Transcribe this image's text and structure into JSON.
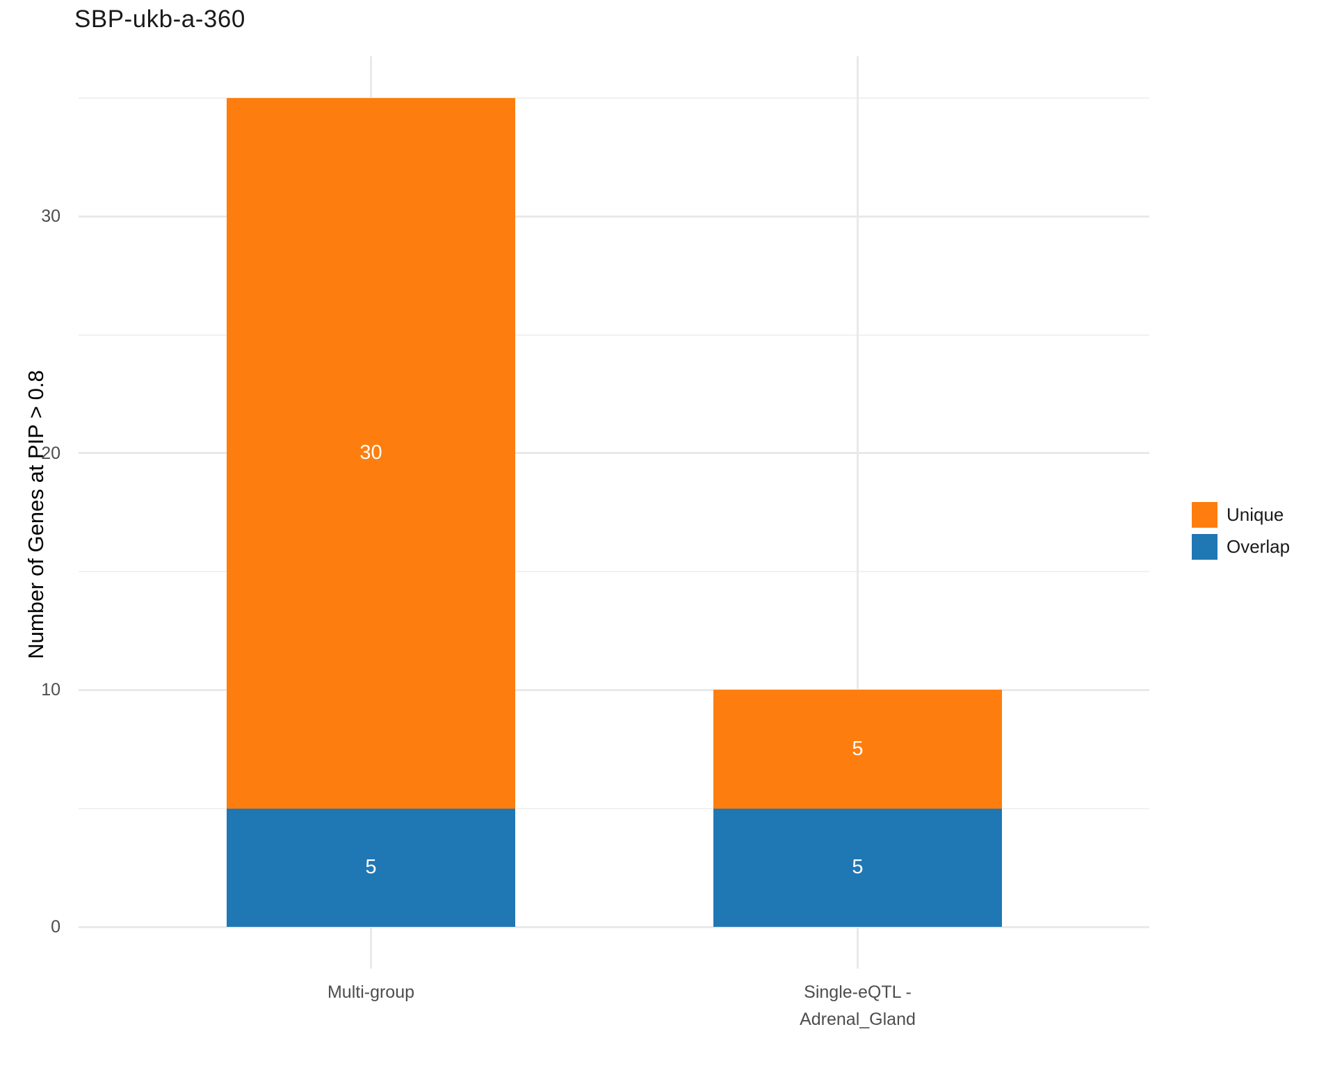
{
  "title": "SBP-ukb-a-360",
  "colors": {
    "unique": "#fd7e0e",
    "overlap": "#1f77b4",
    "tick_label": "#4d4d4d",
    "grid_major": "#e9e9e9",
    "grid_minor": "#f1f1f1",
    "bar_label_text": "#ffffff",
    "title_text": "#1a1a1a"
  },
  "chart_data": {
    "type": "bar",
    "stacked": true,
    "title": "SBP-ukb-a-360",
    "xlabel": "",
    "ylabel": "Number of Genes at PIP > 0.8",
    "categories": [
      "Multi-group",
      "Single-eQTL -\nAdrenal_Gland"
    ],
    "series": [
      {
        "name": "Overlap",
        "color": "#1f77b4",
        "values": [
          5,
          5
        ]
      },
      {
        "name": "Unique",
        "color": "#fd7e0e",
        "values": [
          30,
          5
        ]
      }
    ],
    "totals": [
      35,
      10
    ],
    "segment_labels": [
      [
        "5",
        "30"
      ],
      [
        "5",
        "5"
      ]
    ],
    "y_major_ticks": [
      0,
      10,
      20,
      30
    ],
    "y_minor_ticks": [
      5,
      15,
      25,
      35
    ],
    "ylim": [
      -1.75,
      36.75
    ],
    "grid": true,
    "legend_position": "right",
    "legend_entries": [
      "Unique",
      "Overlap"
    ]
  }
}
